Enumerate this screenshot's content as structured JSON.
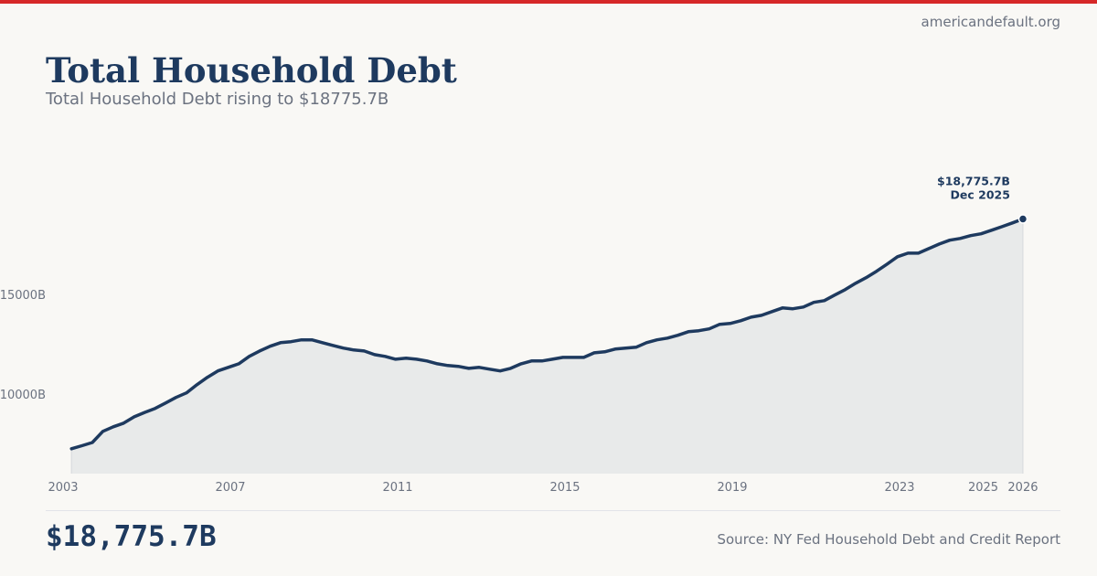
{
  "site": "americandefault.org",
  "title": "Total Household Debt",
  "subtitle": "Total Household Debt rising to $18775.7B",
  "headline_value": "$18,775.7B",
  "source": "Source: NY Fed Household Debt and Credit Report",
  "colors": {
    "accent": "#d62828",
    "line": "#1e3a5f",
    "area": "#e8eaea",
    "muted": "#6b7280"
  },
  "chart_data": {
    "type": "area",
    "title": "Total Household Debt",
    "xlabel": "",
    "ylabel": "",
    "unit": "Billions USD",
    "frequency": "quarterly",
    "start": "2003 Q1",
    "end": "Dec 2025",
    "x_start": 2003.2,
    "x_step": 0.25,
    "xlim": [
      2003,
      2026
    ],
    "ylim": [
      6000,
      19000
    ],
    "x_ticks": [
      2003,
      2007,
      2011,
      2015,
      2019,
      2023,
      2025,
      2026
    ],
    "x_tick_labels": [
      "2003",
      "2007",
      "2011",
      "2015",
      "2019",
      "2023",
      "2025",
      "2026"
    ],
    "y_ticks": [
      10000,
      15000
    ],
    "y_tick_labels": [
      "10000B",
      "15000B"
    ],
    "grid": false,
    "values": [
      7248,
      7400,
      7560,
      8119,
      8350,
      8530,
      8850,
      9070,
      9270,
      9540,
      9820,
      10050,
      10460,
      10830,
      11150,
      11330,
      11510,
      11880,
      12150,
      12390,
      12570,
      12620,
      12710,
      12710,
      12570,
      12430,
      12300,
      12200,
      12150,
      11970,
      11880,
      11740,
      11790,
      11740,
      11650,
      11510,
      11420,
      11380,
      11280,
      11330,
      11240,
      11150,
      11280,
      11510,
      11650,
      11650,
      11740,
      11830,
      11830,
      11830,
      12060,
      12110,
      12250,
      12300,
      12340,
      12570,
      12710,
      12800,
      12940,
      13120,
      13170,
      13260,
      13490,
      13530,
      13670,
      13850,
      13940,
      14130,
      14310,
      14270,
      14360,
      14590,
      14680,
      14960,
      15230,
      15550,
      15830,
      16150,
      16510,
      16880,
      17060,
      17060,
      17290,
      17520,
      17710,
      17800,
      17940,
      18030,
      18210,
      18390,
      18580,
      18775.7
    ],
    "annotation": {
      "value_label": "$18,775.7B",
      "date_label": "Dec 2025"
    }
  }
}
